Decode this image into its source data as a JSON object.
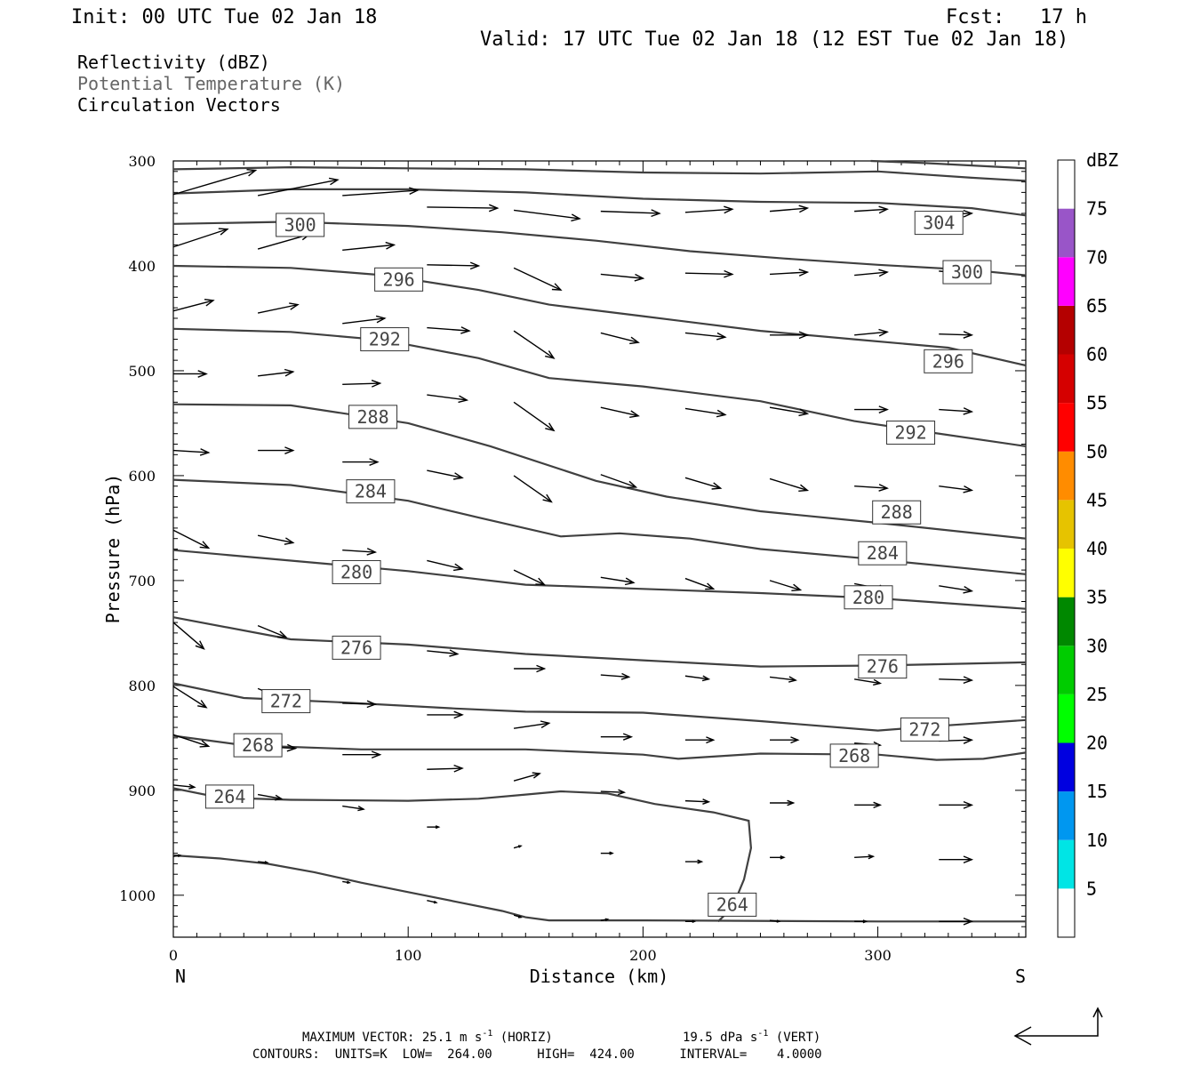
{
  "header": {
    "init": "Init: 00 UTC Tue 02 Jan 18",
    "fcst": "Fcst:   17 h",
    "valid": "Valid: 17 UTC Tue 02 Jan 18 (12 EST Tue 02 Jan 18)"
  },
  "fields": {
    "reflectivity": "Reflectivity (dBZ)",
    "theta": "Potential Temperature (K)",
    "vectors": "Circulation Vectors"
  },
  "footer": {
    "max_vector_label": "MAXIMUM VECTOR:",
    "horiz_value": "25.1 m s",
    "horiz_suffix": " (HORIZ)",
    "vert_value": "19.5 dPa s",
    "vert_suffix": " (VERT)",
    "exponent": "-1",
    "contours": "CONTOURS:  UNITS=K  LOW=  264.00      HIGH=  424.00      INTERVAL=    4.0000"
  },
  "colors": {
    "contour": "#404040",
    "theta_label_text": "#666666"
  },
  "chart_data": {
    "type": "cross-section",
    "xlabel": "Distance (km)",
    "ylabel": "Pressure (hPa)",
    "x_end_left": "N",
    "x_end_right": "S",
    "xlim": [
      0,
      363
    ],
    "ylim": [
      300,
      1040
    ],
    "y_reversed": true,
    "xticks": [
      0,
      100,
      200,
      300
    ],
    "yticks": [
      300,
      400,
      500,
      600,
      700,
      800,
      900,
      1000
    ],
    "colorbar": {
      "units": "dBZ",
      "levels": [
        5,
        10,
        15,
        20,
        25,
        30,
        35,
        40,
        45,
        50,
        55,
        60,
        65,
        70,
        75
      ],
      "colors": [
        "#ffffff",
        "#00e5e5",
        "#0097f0",
        "#0000e0",
        "#00ff00",
        "#00cc00",
        "#008800",
        "#ffff00",
        "#e6c300",
        "#ff8c00",
        "#ff0000",
        "#d50000",
        "#b40000",
        "#ff00ff",
        "#9955c8",
        "#ffffff"
      ]
    },
    "theta_contours": [
      {
        "value": 264,
        "points": [
          [
            0,
            962
          ],
          [
            20,
            965
          ],
          [
            40,
            970
          ],
          [
            60,
            978
          ],
          [
            80,
            988
          ],
          [
            100,
            997
          ],
          [
            120,
            1006
          ],
          [
            140,
            1015
          ],
          [
            150,
            1021
          ],
          [
            160,
            1024
          ],
          [
            200,
            1024
          ],
          [
            300,
            1025
          ],
          [
            363,
            1025
          ]
        ],
        "labels": []
      },
      {
        "value": 264,
        "points": [
          [
            0,
            898
          ],
          [
            20,
            907
          ],
          [
            50,
            909
          ],
          [
            100,
            910
          ],
          [
            130,
            908
          ],
          [
            150,
            904
          ],
          [
            165,
            901
          ],
          [
            185,
            903
          ],
          [
            205,
            913
          ],
          [
            230,
            921
          ],
          [
            245,
            929
          ],
          [
            246,
            955
          ],
          [
            243,
            985
          ],
          [
            238,
            1012
          ],
          [
            232,
            1025
          ]
        ],
        "labels": [
          [
            24,
            906
          ],
          [
            238,
            1009
          ]
        ]
      },
      {
        "value": 268,
        "points": [
          [
            0,
            848
          ],
          [
            30,
            857
          ],
          [
            80,
            861
          ],
          [
            150,
            861
          ],
          [
            200,
            866
          ],
          [
            215,
            870
          ],
          [
            250,
            865
          ],
          [
            300,
            866
          ],
          [
            325,
            871
          ],
          [
            345,
            870
          ],
          [
            363,
            864
          ]
        ],
        "labels": [
          [
            36,
            857
          ],
          [
            290,
            867
          ]
        ]
      },
      {
        "value": 272,
        "points": [
          [
            0,
            798
          ],
          [
            30,
            812
          ],
          [
            70,
            816
          ],
          [
            120,
            822
          ],
          [
            150,
            825
          ],
          [
            200,
            826
          ],
          [
            250,
            834
          ],
          [
            300,
            843
          ],
          [
            330,
            838
          ],
          [
            363,
            833
          ]
        ],
        "labels": [
          [
            48,
            815
          ],
          [
            320,
            842
          ]
        ]
      },
      {
        "value": 276,
        "points": [
          [
            0,
            735
          ],
          [
            50,
            756
          ],
          [
            100,
            761
          ],
          [
            150,
            770
          ],
          [
            200,
            776
          ],
          [
            250,
            782
          ],
          [
            300,
            781
          ],
          [
            363,
            778
          ]
        ],
        "labels": [
          [
            78,
            764
          ],
          [
            302,
            782
          ]
        ]
      },
      {
        "value": 280,
        "points": [
          [
            0,
            671
          ],
          [
            50,
            681
          ],
          [
            100,
            691
          ],
          [
            150,
            704
          ],
          [
            200,
            708
          ],
          [
            250,
            712
          ],
          [
            300,
            717
          ],
          [
            363,
            727
          ]
        ],
        "labels": [
          [
            78,
            692
          ],
          [
            296,
            716
          ]
        ]
      },
      {
        "value": 284,
        "points": [
          [
            0,
            604
          ],
          [
            50,
            609
          ],
          [
            100,
            624
          ],
          [
            130,
            640
          ],
          [
            165,
            658
          ],
          [
            190,
            655
          ],
          [
            220,
            660
          ],
          [
            250,
            670
          ],
          [
            300,
            680
          ],
          [
            363,
            694
          ]
        ],
        "labels": [
          [
            84,
            615
          ],
          [
            302,
            674
          ]
        ]
      },
      {
        "value": 288,
        "points": [
          [
            0,
            532
          ],
          [
            50,
            533
          ],
          [
            100,
            550
          ],
          [
            135,
            572
          ],
          [
            180,
            605
          ],
          [
            210,
            620
          ],
          [
            250,
            634
          ],
          [
            300,
            645
          ],
          [
            363,
            660
          ]
        ],
        "labels": [
          [
            85,
            544
          ],
          [
            308,
            635
          ]
        ]
      },
      {
        "value": 292,
        "points": [
          [
            0,
            460
          ],
          [
            50,
            463
          ],
          [
            90,
            471
          ],
          [
            130,
            488
          ],
          [
            160,
            507
          ],
          [
            200,
            515
          ],
          [
            250,
            529
          ],
          [
            290,
            548
          ],
          [
            320,
            558
          ],
          [
            363,
            572
          ]
        ],
        "labels": [
          [
            90,
            470
          ],
          [
            314,
            559
          ]
        ]
      },
      {
        "value": 296,
        "points": [
          [
            0,
            400
          ],
          [
            50,
            402
          ],
          [
            90,
            409
          ],
          [
            130,
            423
          ],
          [
            160,
            437
          ],
          [
            200,
            448
          ],
          [
            250,
            462
          ],
          [
            290,
            470
          ],
          [
            330,
            478
          ],
          [
            363,
            495
          ]
        ],
        "labels": [
          [
            96,
            413
          ],
          [
            330,
            491
          ]
        ]
      },
      {
        "value": 300,
        "points": [
          [
            0,
            360
          ],
          [
            50,
            358
          ],
          [
            100,
            362
          ],
          [
            140,
            368
          ],
          [
            180,
            376
          ],
          [
            220,
            386
          ],
          [
            260,
            393
          ],
          [
            300,
            399
          ],
          [
            340,
            404
          ],
          [
            363,
            409
          ]
        ],
        "labels": [
          [
            54,
            361
          ],
          [
            338,
            406
          ]
        ]
      },
      {
        "value": 304,
        "points": [
          [
            0,
            331
          ],
          [
            50,
            327
          ],
          [
            100,
            327
          ],
          [
            150,
            330
          ],
          [
            200,
            336
          ],
          [
            250,
            339
          ],
          [
            300,
            340
          ],
          [
            340,
            345
          ],
          [
            363,
            352
          ]
        ],
        "labels": [
          [
            326,
            359
          ]
        ]
      },
      {
        "value": 308,
        "points": [
          [
            0,
            308
          ],
          [
            50,
            306
          ],
          [
            100,
            307
          ],
          [
            150,
            308
          ],
          [
            200,
            311
          ],
          [
            250,
            312
          ],
          [
            300,
            310
          ],
          [
            340,
            316
          ],
          [
            363,
            319
          ]
        ],
        "labels": []
      },
      {
        "value": 312,
        "points": [
          [
            297,
            300
          ],
          [
            320,
            302
          ],
          [
            363,
            307
          ]
        ],
        "labels": []
      }
    ],
    "vectors": [
      [
        0,
        332,
        35,
        309
      ],
      [
        36,
        333,
        70,
        318
      ],
      [
        72,
        333,
        104,
        328
      ],
      [
        108,
        344,
        138,
        345
      ],
      [
        145,
        347,
        173,
        355
      ],
      [
        182,
        348,
        207,
        350
      ],
      [
        218,
        349,
        238,
        346
      ],
      [
        254,
        348,
        270,
        345
      ],
      [
        290,
        348,
        304,
        346
      ],
      [
        326,
        351,
        340,
        350
      ],
      [
        0,
        382,
        23,
        365
      ],
      [
        36,
        384,
        58,
        370
      ],
      [
        72,
        385,
        94,
        380
      ],
      [
        108,
        399,
        130,
        400
      ],
      [
        145,
        402,
        165,
        423
      ],
      [
        182,
        408,
        200,
        412
      ],
      [
        218,
        407,
        238,
        408
      ],
      [
        254,
        408,
        270,
        406
      ],
      [
        290,
        409,
        304,
        406
      ],
      [
        326,
        405,
        340,
        408
      ],
      [
        0,
        443,
        17,
        433
      ],
      [
        36,
        445,
        53,
        437
      ],
      [
        72,
        455,
        90,
        450
      ],
      [
        108,
        459,
        126,
        462
      ],
      [
        145,
        462,
        162,
        488
      ],
      [
        182,
        464,
        198,
        473
      ],
      [
        218,
        464,
        235,
        468
      ],
      [
        254,
        466,
        270,
        466
      ],
      [
        290,
        466,
        304,
        463
      ],
      [
        326,
        465,
        340,
        466
      ],
      [
        0,
        503,
        14,
        503
      ],
      [
        36,
        505,
        51,
        501
      ],
      [
        72,
        513,
        88,
        512
      ],
      [
        108,
        523,
        125,
        528
      ],
      [
        145,
        530,
        162,
        557
      ],
      [
        182,
        535,
        198,
        543
      ],
      [
        218,
        536,
        235,
        542
      ],
      [
        254,
        535,
        270,
        541
      ],
      [
        290,
        537,
        304,
        537
      ],
      [
        326,
        537,
        340,
        539
      ],
      [
        0,
        576,
        15,
        578
      ],
      [
        36,
        576,
        51,
        576
      ],
      [
        72,
        587,
        87,
        587
      ],
      [
        108,
        595,
        123,
        602
      ],
      [
        145,
        600,
        161,
        625
      ],
      [
        182,
        599,
        197,
        611
      ],
      [
        218,
        602,
        233,
        612
      ],
      [
        254,
        603,
        270,
        614
      ],
      [
        290,
        610,
        304,
        612
      ],
      [
        326,
        610,
        340,
        614
      ],
      [
        0,
        652,
        15,
        669
      ],
      [
        36,
        657,
        51,
        664
      ],
      [
        72,
        671,
        86,
        673
      ],
      [
        108,
        681,
        123,
        689
      ],
      [
        145,
        690,
        158,
        704
      ],
      [
        182,
        697,
        196,
        702
      ],
      [
        218,
        698,
        230,
        708
      ],
      [
        254,
        700,
        267,
        709
      ],
      [
        290,
        703,
        304,
        709
      ],
      [
        326,
        705,
        340,
        710
      ],
      [
        0,
        740,
        13,
        765
      ],
      [
        36,
        743,
        48,
        754
      ],
      [
        72,
        758,
        85,
        762
      ],
      [
        108,
        767,
        121,
        770
      ],
      [
        145,
        784,
        158,
        784
      ],
      [
        182,
        790,
        194,
        792
      ],
      [
        218,
        791,
        228,
        794
      ],
      [
        254,
        792,
        265,
        795
      ],
      [
        290,
        794,
        301,
        798
      ],
      [
        326,
        794,
        340,
        795
      ],
      [
        0,
        801,
        14,
        821
      ],
      [
        36,
        803,
        48,
        814
      ],
      [
        72,
        817,
        86,
        818
      ],
      [
        108,
        828,
        123,
        828
      ],
      [
        145,
        841,
        160,
        836
      ],
      [
        182,
        849,
        195,
        849
      ],
      [
        218,
        852,
        230,
        852
      ],
      [
        254,
        852,
        266,
        852
      ],
      [
        290,
        855,
        301,
        857
      ],
      [
        326,
        853,
        340,
        852
      ],
      [
        0,
        847,
        15,
        858
      ],
      [
        36,
        858,
        52,
        860
      ],
      [
        72,
        866,
        88,
        866
      ],
      [
        108,
        880,
        123,
        879
      ],
      [
        145,
        891,
        156,
        884
      ],
      [
        182,
        901,
        192,
        902
      ],
      [
        218,
        910,
        228,
        911
      ],
      [
        254,
        912,
        264,
        912
      ],
      [
        290,
        914,
        301,
        914
      ],
      [
        326,
        914,
        340,
        914
      ],
      [
        0,
        895,
        9,
        897
      ],
      [
        36,
        904,
        46,
        908
      ],
      [
        72,
        915,
        81,
        918
      ],
      [
        108,
        935,
        113,
        935
      ],
      [
        145,
        955,
        148,
        953
      ],
      [
        182,
        960,
        187,
        960
      ],
      [
        218,
        968,
        225,
        968
      ],
      [
        254,
        964,
        260,
        964
      ],
      [
        290,
        964,
        298,
        963
      ],
      [
        326,
        966,
        340,
        966
      ],
      [
        0,
        963,
        3,
        962
      ],
      [
        36,
        968,
        40,
        969
      ],
      [
        72,
        987,
        75,
        988
      ],
      [
        108,
        1005,
        112,
        1007
      ],
      [
        145,
        1019,
        148,
        1021
      ],
      [
        182,
        1024,
        185,
        1023
      ],
      [
        218,
        1025,
        222,
        1025
      ],
      [
        254,
        1024,
        258,
        1025
      ],
      [
        290,
        1025,
        295,
        1025
      ],
      [
        326,
        1025,
        340,
        1025
      ]
    ]
  }
}
